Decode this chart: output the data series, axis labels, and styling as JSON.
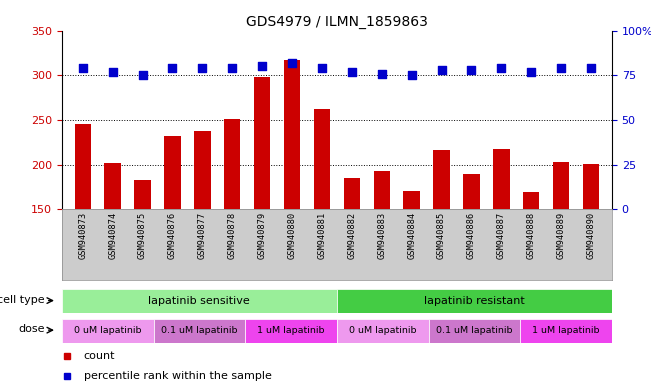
{
  "title": "GDS4979 / ILMN_1859863",
  "samples": [
    "GSM940873",
    "GSM940874",
    "GSM940875",
    "GSM940876",
    "GSM940877",
    "GSM940878",
    "GSM940879",
    "GSM940880",
    "GSM940881",
    "GSM940882",
    "GSM940883",
    "GSM940884",
    "GSM940885",
    "GSM940886",
    "GSM940887",
    "GSM940888",
    "GSM940889",
    "GSM940890"
  ],
  "bar_values": [
    245,
    202,
    183,
    232,
    238,
    251,
    298,
    317,
    262,
    185,
    193,
    171,
    216,
    190,
    218,
    169,
    203,
    201
  ],
  "dot_values": [
    79,
    77,
    75,
    79,
    79,
    79,
    80,
    82,
    79,
    77,
    76,
    75,
    78,
    78,
    79,
    77,
    79,
    79
  ],
  "bar_color": "#cc0000",
  "dot_color": "#0000cc",
  "ylim_left": [
    150,
    350
  ],
  "ylim_right": [
    0,
    100
  ],
  "yticks_left": [
    150,
    200,
    250,
    300,
    350
  ],
  "yticks_right": [
    0,
    25,
    50,
    75,
    100
  ],
  "ytick_labels_right": [
    "0",
    "25",
    "50",
    "75",
    "100%"
  ],
  "grid_values": [
    200,
    250,
    300
  ],
  "cell_type_groups": [
    {
      "label": "lapatinib sensitive",
      "start": 0,
      "end": 9,
      "color": "#99ee99"
    },
    {
      "label": "lapatinib resistant",
      "start": 9,
      "end": 18,
      "color": "#44cc44"
    }
  ],
  "dose_groups": [
    {
      "label": "0 uM lapatinib",
      "start": 0,
      "end": 3,
      "color": "#ee99ee"
    },
    {
      "label": "0.1 uM lapatinib",
      "start": 3,
      "end": 6,
      "color": "#cc77cc"
    },
    {
      "label": "1 uM lapatinib",
      "start": 6,
      "end": 9,
      "color": "#ee44ee"
    },
    {
      "label": "0 uM lapatinib",
      "start": 9,
      "end": 12,
      "color": "#ee99ee"
    },
    {
      "label": "0.1 uM lapatinib",
      "start": 12,
      "end": 15,
      "color": "#cc77cc"
    },
    {
      "label": "1 uM lapatinib",
      "start": 15,
      "end": 18,
      "color": "#ee44ee"
    }
  ],
  "legend_items": [
    {
      "label": "count",
      "color": "#cc0000"
    },
    {
      "label": "percentile rank within the sample",
      "color": "#0000cc"
    }
  ],
  "bar_width": 0.55,
  "dot_size": 28,
  "xlabel_bg": "#cccccc",
  "title_fontsize": 10,
  "tick_fontsize": 8,
  "label_fontsize": 8
}
